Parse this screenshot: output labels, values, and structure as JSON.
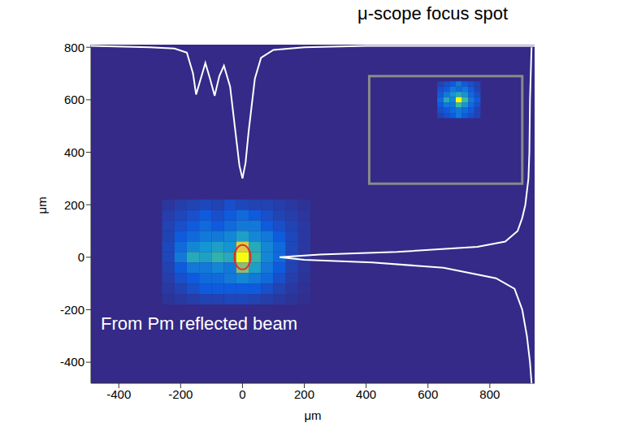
{
  "chart_data": {
    "type": "heatmap",
    "title": "μ-scope focus spot",
    "annotation": "From Pm reflected beam",
    "xlabel": "μm",
    "ylabel": "μm",
    "xlim": [
      -490,
      945
    ],
    "ylim": [
      -480,
      810
    ],
    "xticks": [
      -400,
      -200,
      0,
      200,
      400,
      600,
      800
    ],
    "yticks": [
      -400,
      -200,
      0,
      200,
      400,
      600,
      800
    ],
    "grid": false,
    "zlim": [
      0,
      1
    ],
    "heatmap": {
      "x": [
        -240,
        -200,
        -160,
        -120,
        -80,
        -40,
        0,
        40,
        80,
        120,
        160,
        200
      ],
      "y": [
        200,
        160,
        120,
        80,
        40,
        0,
        -40,
        -80,
        -120,
        -160
      ],
      "values": [
        [
          0.05,
          0.08,
          0.1,
          0.12,
          0.1,
          0.15,
          0.12,
          0.1,
          0.1,
          0.08,
          0.06,
          0.04
        ],
        [
          0.08,
          0.12,
          0.15,
          0.2,
          0.15,
          0.2,
          0.25,
          0.2,
          0.15,
          0.1,
          0.08,
          0.05
        ],
        [
          0.1,
          0.15,
          0.2,
          0.25,
          0.2,
          0.25,
          0.3,
          0.3,
          0.2,
          0.15,
          0.1,
          0.06
        ],
        [
          0.1,
          0.2,
          0.25,
          0.3,
          0.3,
          0.35,
          0.45,
          0.35,
          0.3,
          0.2,
          0.12,
          0.06
        ],
        [
          0.12,
          0.25,
          0.35,
          0.4,
          0.45,
          0.4,
          0.85,
          0.5,
          0.35,
          0.25,
          0.12,
          0.06
        ],
        [
          0.12,
          0.3,
          0.5,
          0.45,
          0.55,
          0.5,
          1.0,
          0.55,
          0.35,
          0.25,
          0.12,
          0.05
        ],
        [
          0.1,
          0.2,
          0.3,
          0.3,
          0.35,
          0.3,
          0.7,
          0.45,
          0.3,
          0.2,
          0.1,
          0.05
        ],
        [
          0.08,
          0.15,
          0.2,
          0.25,
          0.25,
          0.3,
          0.35,
          0.3,
          0.25,
          0.15,
          0.08,
          0.04
        ],
        [
          0.06,
          0.1,
          0.15,
          0.2,
          0.2,
          0.2,
          0.2,
          0.2,
          0.15,
          0.1,
          0.06,
          0.03
        ],
        [
          0.04,
          0.06,
          0.08,
          0.1,
          0.1,
          0.12,
          0.12,
          0.1,
          0.08,
          0.06,
          0.04,
          0.02
        ]
      ]
    },
    "inset": {
      "x": [
        640,
        660,
        680,
        700,
        720,
        740,
        760
      ],
      "y": [
        660,
        640,
        620,
        600,
        580,
        560,
        540
      ],
      "values": [
        [
          0.1,
          0.15,
          0.2,
          0.3,
          0.2,
          0.15,
          0.1
        ],
        [
          0.15,
          0.2,
          0.3,
          0.25,
          0.3,
          0.2,
          0.1
        ],
        [
          0.2,
          0.3,
          0.4,
          0.5,
          0.4,
          0.25,
          0.15
        ],
        [
          0.25,
          0.5,
          0.35,
          1.0,
          0.6,
          0.3,
          0.2
        ],
        [
          0.2,
          0.3,
          0.3,
          0.6,
          0.4,
          0.25,
          0.15
        ],
        [
          0.15,
          0.2,
          0.25,
          0.3,
          0.25,
          0.2,
          0.1
        ],
        [
          0.1,
          0.15,
          0.2,
          0.3,
          0.2,
          0.15,
          0.1
        ]
      ]
    },
    "horizontal_profile": {
      "x": [
        -490,
        -300,
        -220,
        -180,
        -160,
        -150,
        -135,
        -120,
        -105,
        -90,
        -75,
        -60,
        -40,
        -20,
        -10,
        0,
        10,
        20,
        40,
        60,
        100,
        200,
        400,
        600,
        945
      ],
      "y": [
        805,
        800,
        795,
        780,
        700,
        620,
        680,
        740,
        680,
        615,
        690,
        730,
        650,
        450,
        350,
        300,
        360,
        480,
        680,
        760,
        790,
        800,
        805,
        805,
        805
      ]
    },
    "vertical_profile": {
      "x": [
        935,
        930,
        928,
        925,
        915,
        905,
        890,
        850,
        760,
        500,
        250,
        120,
        200,
        420,
        650,
        820,
        880,
        905,
        920,
        930,
        935
      ],
      "y": [
        800,
        600,
        400,
        300,
        200,
        150,
        100,
        60,
        40,
        20,
        10,
        0,
        -10,
        -20,
        -40,
        -80,
        -120,
        -200,
        -300,
        -400,
        -480
      ]
    },
    "profile_color": "#ffffff",
    "ellipse": {
      "x": 0,
      "y": 0,
      "color": "#e03020"
    }
  }
}
